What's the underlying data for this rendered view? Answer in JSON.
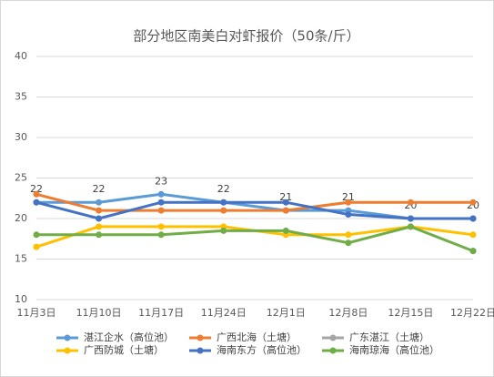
{
  "chart_data": {
    "type": "line",
    "title": "部分地区南美白对虾报价（50条/斤）",
    "categories": [
      "11月3日",
      "11月10日",
      "11月17日",
      "11月24日",
      "12月1日",
      "12月8日",
      "12月15日",
      "12月22日"
    ],
    "ylim": [
      10,
      40
    ],
    "yticks": [
      10,
      15,
      20,
      25,
      30,
      35,
      40
    ],
    "grid": true,
    "series": [
      {
        "name": "湛江企水（高位池）",
        "color": "#5b9bd5",
        "values": [
          22,
          22,
          23,
          22,
          21,
          21,
          20,
          20
        ],
        "labels": true
      },
      {
        "name": "广西北海（土塘）",
        "color": "#ed7d31",
        "values": [
          23,
          21,
          21,
          21,
          21,
          22,
          22,
          22
        ]
      },
      {
        "name": "广东湛江（土塘）",
        "color": "#a5a5a5",
        "values": [
          null,
          null,
          null,
          null,
          null,
          null,
          null,
          16
        ]
      },
      {
        "name": "广西防城（土塘）",
        "color": "#ffc000",
        "values": [
          16.5,
          19,
          19,
          19,
          18,
          18,
          19,
          18
        ]
      },
      {
        "name": "海南东方（高位池）",
        "color": "#4472c4",
        "values": [
          22,
          20,
          22,
          22,
          22,
          20.5,
          20,
          20
        ]
      },
      {
        "name": "海南琼海（高位池）",
        "color": "#70ad47",
        "values": [
          18,
          18,
          18,
          18.5,
          18.5,
          17,
          19,
          16
        ]
      }
    ]
  }
}
